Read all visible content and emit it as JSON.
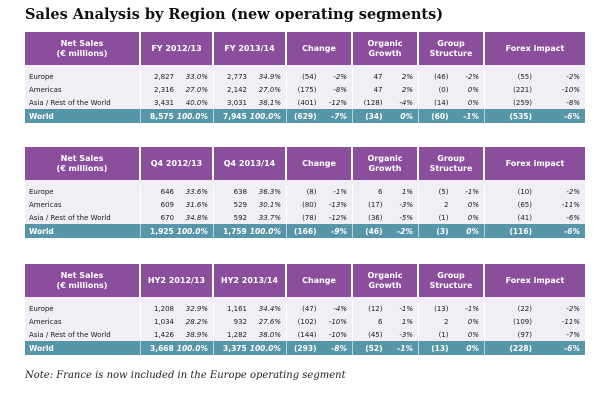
{
  "title": "Sales Analysis by Region (new operating segments)",
  "note": "Note: France is now included in the Europe operating segment",
  "tables": [
    {
      "headers": [
        "Net Sales\n(€ millions)",
        "FY 2012/13",
        "FY 2013/14",
        "Change",
        "Organic Growth",
        "Group Structure",
        "Forex impact"
      ],
      "rows": [
        {
          "label": "Europe",
          "p1v": "2,827",
          "p1p": "33.0%",
          "p2v": "2,773",
          "p2p": "34.9%",
          "chv": "(54)",
          "chp": "-2%",
          "ogv": "47",
          "ogp": "2%",
          "gsv": "(46)",
          "gsp": "-2%",
          "fxv": "(55)",
          "fxp": "-2%"
        },
        {
          "label": "Americas",
          "p1v": "2,316",
          "p1p": "27.0%",
          "p2v": "2,142",
          "p2p": "27.0%",
          "chv": "(175)",
          "chp": "-8%",
          "ogv": "47",
          "ogp": "2%",
          "gsv": "(0)",
          "gsp": "0%",
          "fxv": "(221)",
          "fxp": "-10%"
        },
        {
          "label": "Asia / Rest of the World",
          "p1v": "3,431",
          "p1p": "40.0%",
          "p2v": "3,031",
          "p2p": "38.1%",
          "chv": "(401)",
          "chp": "-12%",
          "ogv": "(128)",
          "ogp": "-4%",
          "gsv": "(14)",
          "gsp": "0%",
          "fxv": "(259)",
          "fxp": "-8%"
        }
      ],
      "total": {
        "label": "World",
        "p1v": "8,575",
        "p1p": "100.0%",
        "p2v": "7,945",
        "p2p": "100.0%",
        "chv": "(629)",
        "chp": "-7%",
        "ogv": "(34)",
        "ogp": "0%",
        "gsv": "(60)",
        "gsp": "-1%",
        "fxv": "(535)",
        "fxp": "-6%"
      }
    },
    {
      "headers": [
        "Net Sales\n(€ millions)",
        "Q4 2012/13",
        "Q4 2013/14",
        "Change",
        "Organic Growth",
        "Group Structure",
        "Forex impact"
      ],
      "rows": [
        {
          "label": "Europe",
          "p1v": "646",
          "p1p": "33.6%",
          "p2v": "638",
          "p2p": "36.3%",
          "chv": "(8)",
          "chp": "-1%",
          "ogv": "6",
          "ogp": "1%",
          "gsv": "(5)",
          "gsp": "-1%",
          "fxv": "(10)",
          "fxp": "-2%"
        },
        {
          "label": "Americas",
          "p1v": "609",
          "p1p": "31.6%",
          "p2v": "529",
          "p2p": "30.1%",
          "chv": "(80)",
          "chp": "-13%",
          "ogv": "(17)",
          "ogp": "-3%",
          "gsv": "2",
          "gsp": "0%",
          "fxv": "(65)",
          "fxp": "-11%"
        },
        {
          "label": "Asia / Rest of the World",
          "p1v": "670",
          "p1p": "34.8%",
          "p2v": "592",
          "p2p": "33.7%",
          "chv": "(78)",
          "chp": "-12%",
          "ogv": "(36)",
          "ogp": "-5%",
          "gsv": "(1)",
          "gsp": "0%",
          "fxv": "(41)",
          "fxp": "-6%"
        }
      ],
      "total": {
        "label": "World",
        "p1v": "1,925",
        "p1p": "100.0%",
        "p2v": "1,759",
        "p2p": "100.0%",
        "chv": "(166)",
        "chp": "-9%",
        "ogv": "(46)",
        "ogp": "-2%",
        "gsv": "(3)",
        "gsp": "0%",
        "fxv": "(116)",
        "fxp": "-6%"
      }
    },
    {
      "headers": [
        "Net Sales\n(€ millions)",
        "HY2 2012/13",
        "HY2 2013/14",
        "Change",
        "Organic Growth",
        "Group Structure",
        "Forex impact"
      ],
      "rows": [
        {
          "label": "Europe",
          "p1v": "1,208",
          "p1p": "32.9%",
          "p2v": "1,161",
          "p2p": "34.4%",
          "chv": "(47)",
          "chp": "-4%",
          "ogv": "(12)",
          "ogp": "-1%",
          "gsv": "(13)",
          "gsp": "-1%",
          "fxv": "(22)",
          "fxp": "-2%"
        },
        {
          "label": "Americas",
          "p1v": "1,034",
          "p1p": "28.2%",
          "p2v": "932",
          "p2p": "27.6%",
          "chv": "(102)",
          "chp": "-10%",
          "ogv": "6",
          "ogp": "1%",
          "gsv": "2",
          "gsp": "0%",
          "fxv": "(109)",
          "fxp": "-11%"
        },
        {
          "label": "Asia / Rest of the World",
          "p1v": "1,426",
          "p1p": "38.9%",
          "p2v": "1,282",
          "p2p": "38.0%",
          "chv": "(144)",
          "chp": "-10%",
          "ogv": "(45)",
          "ogp": "-3%",
          "gsv": "(1)",
          "gsp": "0%",
          "fxv": "(97)",
          "fxp": "-7%"
        }
      ],
      "total": {
        "label": "World",
        "p1v": "3,668",
        "p1p": "100.0%",
        "p2v": "3,375",
        "p2p": "100.0%",
        "chv": "(293)",
        "chp": "-8%",
        "ogv": "(52)",
        "ogp": "-1%",
        "gsv": "(13)",
        "gsp": "0%",
        "fxv": "(228)",
        "fxp": "-6%"
      }
    }
  ]
}
